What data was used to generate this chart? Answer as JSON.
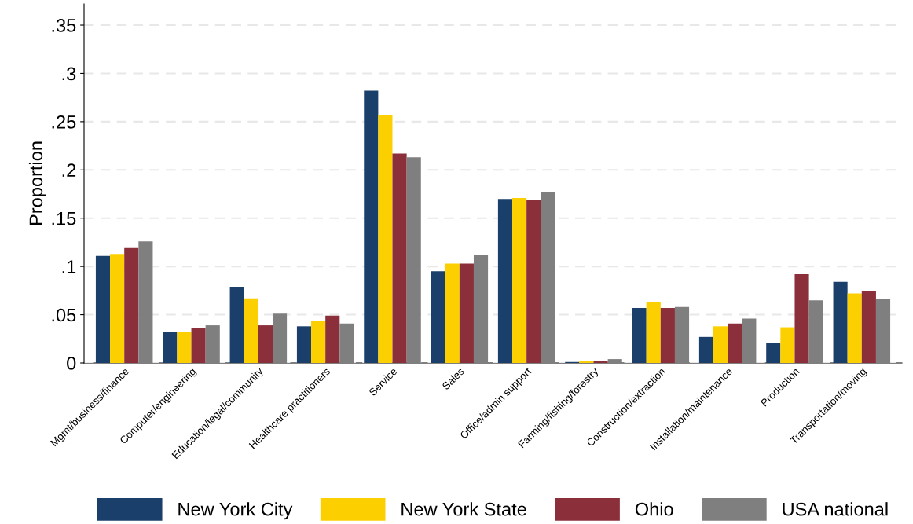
{
  "chart_data": {
    "type": "bar",
    "ylabel": "Proportion",
    "categories": [
      "Mgmt/business/finance",
      "Computer/engineering",
      "Education/legal/community",
      "Healthcare practitioners",
      "Service",
      "Sales",
      "Office/admin support",
      "Farming/fishing/forestry",
      "Construction/extraction",
      "Installation/maintenance",
      "Production",
      "Transportation/moving"
    ],
    "series": [
      {
        "name": "New York City",
        "color": "#1a3f6b",
        "values": [
          0.111,
          0.032,
          0.079,
          0.038,
          0.282,
          0.095,
          0.17,
          0.001,
          0.057,
          0.027,
          0.021,
          0.084
        ]
      },
      {
        "name": "New York State",
        "color": "#fcd000",
        "values": [
          0.113,
          0.032,
          0.067,
          0.044,
          0.257,
          0.103,
          0.171,
          0.002,
          0.063,
          0.038,
          0.037,
          0.072
        ]
      },
      {
        "name": "Ohio",
        "color": "#8b2f3b",
        "values": [
          0.119,
          0.036,
          0.039,
          0.049,
          0.217,
          0.103,
          0.169,
          0.002,
          0.057,
          0.041,
          0.092,
          0.074
        ]
      },
      {
        "name": "USA national",
        "color": "#7f7f7f",
        "values": [
          0.126,
          0.039,
          0.051,
          0.041,
          0.213,
          0.112,
          0.177,
          0.004,
          0.058,
          0.046,
          0.065,
          0.066
        ]
      }
    ],
    "ylim": [
      0,
      0.372
    ],
    "yticks": [
      {
        "value": 0,
        "label": "0"
      },
      {
        "value": 0.05,
        "label": ".05"
      },
      {
        "value": 0.1,
        "label": ".1"
      },
      {
        "value": 0.15,
        "label": ".15"
      },
      {
        "value": 0.2,
        "label": ".2"
      },
      {
        "value": 0.25,
        "label": ".25"
      },
      {
        "value": 0.3,
        "label": ".3"
      },
      {
        "value": 0.35,
        "label": ".35"
      }
    ],
    "grid": "y",
    "legend": "bottom"
  }
}
